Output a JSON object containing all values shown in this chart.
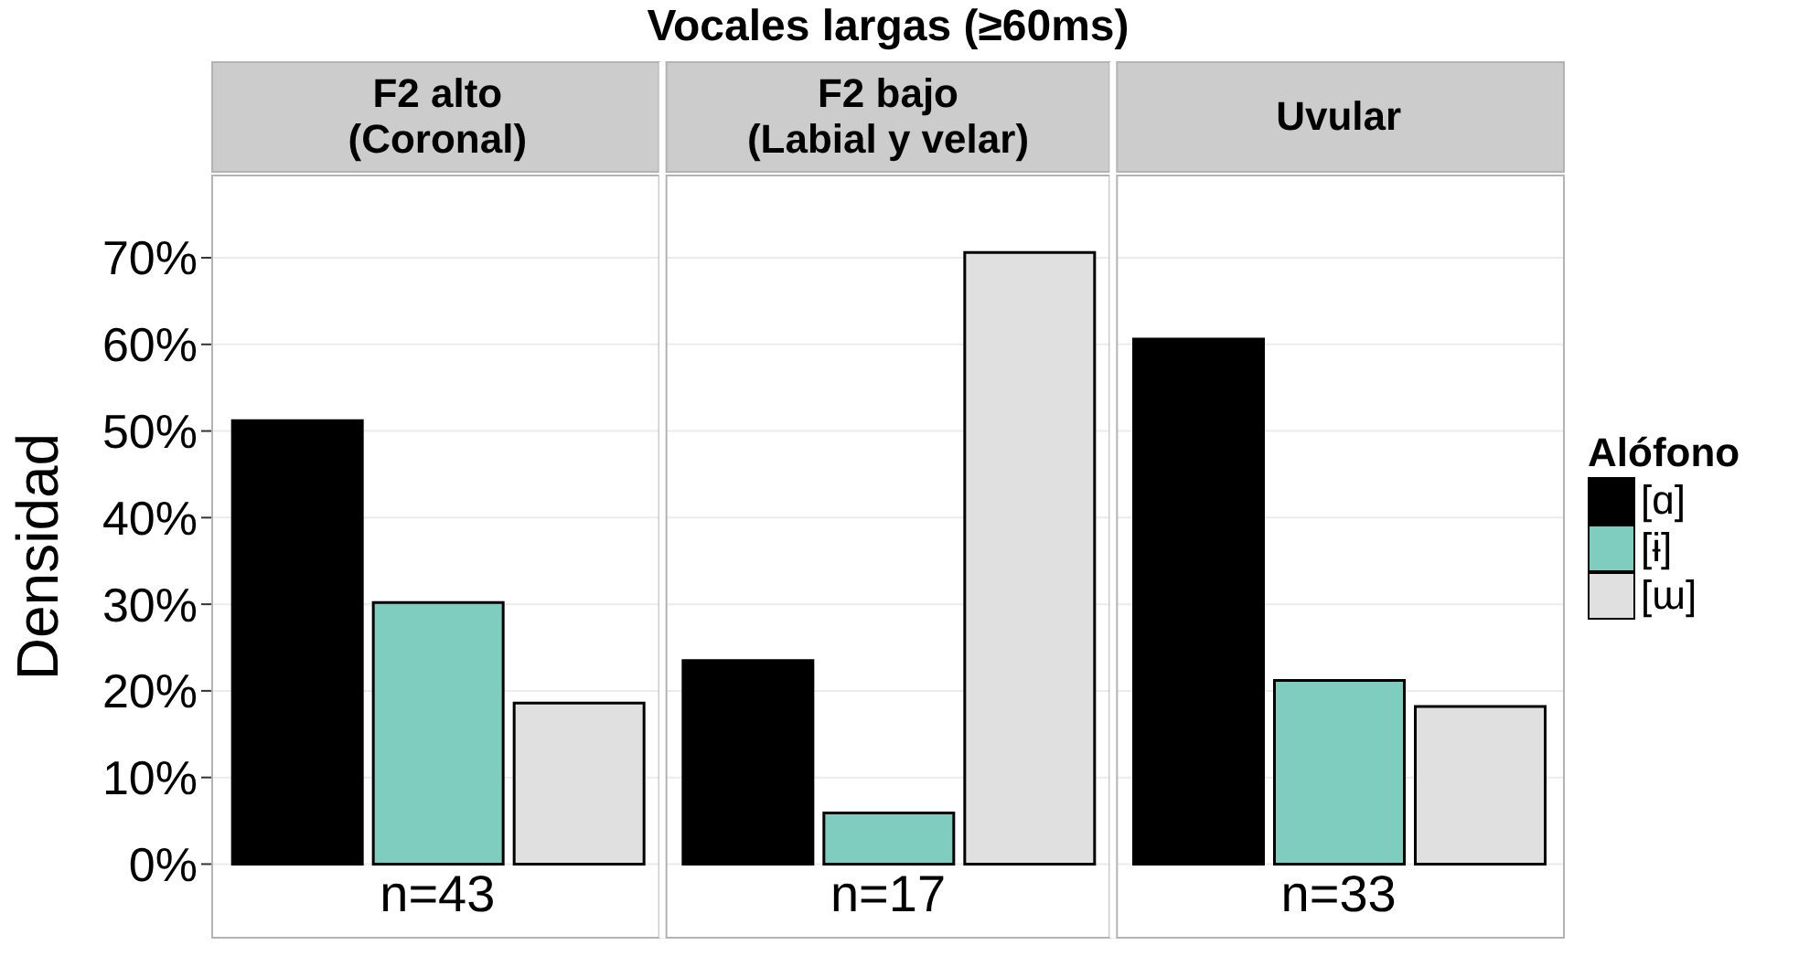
{
  "chart_data": {
    "type": "bar",
    "title": "Vocales largas (≥60ms)",
    "ylabel": "Densidad",
    "legend_title": "Alófono",
    "categories": [
      "F2 alto\n(Coronal)",
      "F2 bajo\n(Labial y velar)",
      "Uvular"
    ],
    "series": [
      {
        "name": "[ɑ]",
        "color": "#000000",
        "values": [
          51.2,
          23.5,
          60.6
        ]
      },
      {
        "name": "[ɨ]",
        "color": "#7fcdbf",
        "values": [
          30.2,
          5.9,
          21.2
        ]
      },
      {
        "name": "[ɯ]",
        "color": "#e0e0e0",
        "values": [
          18.6,
          70.6,
          18.2
        ]
      }
    ],
    "ylim": [
      -8.5,
      79.5
    ],
    "yticks": [
      {
        "value": 0,
        "label": "0%"
      },
      {
        "value": 10,
        "label": "10%"
      },
      {
        "value": 20,
        "label": "20%"
      },
      {
        "value": 30,
        "label": "30%"
      },
      {
        "value": 40,
        "label": "40%"
      },
      {
        "value": 50,
        "label": "50%"
      },
      {
        "value": 60,
        "label": "60%"
      },
      {
        "value": 70,
        "label": "70%"
      }
    ],
    "grid": "y",
    "legend": "right",
    "annotations": [
      "n=43",
      "n=17",
      "n=33"
    ]
  }
}
